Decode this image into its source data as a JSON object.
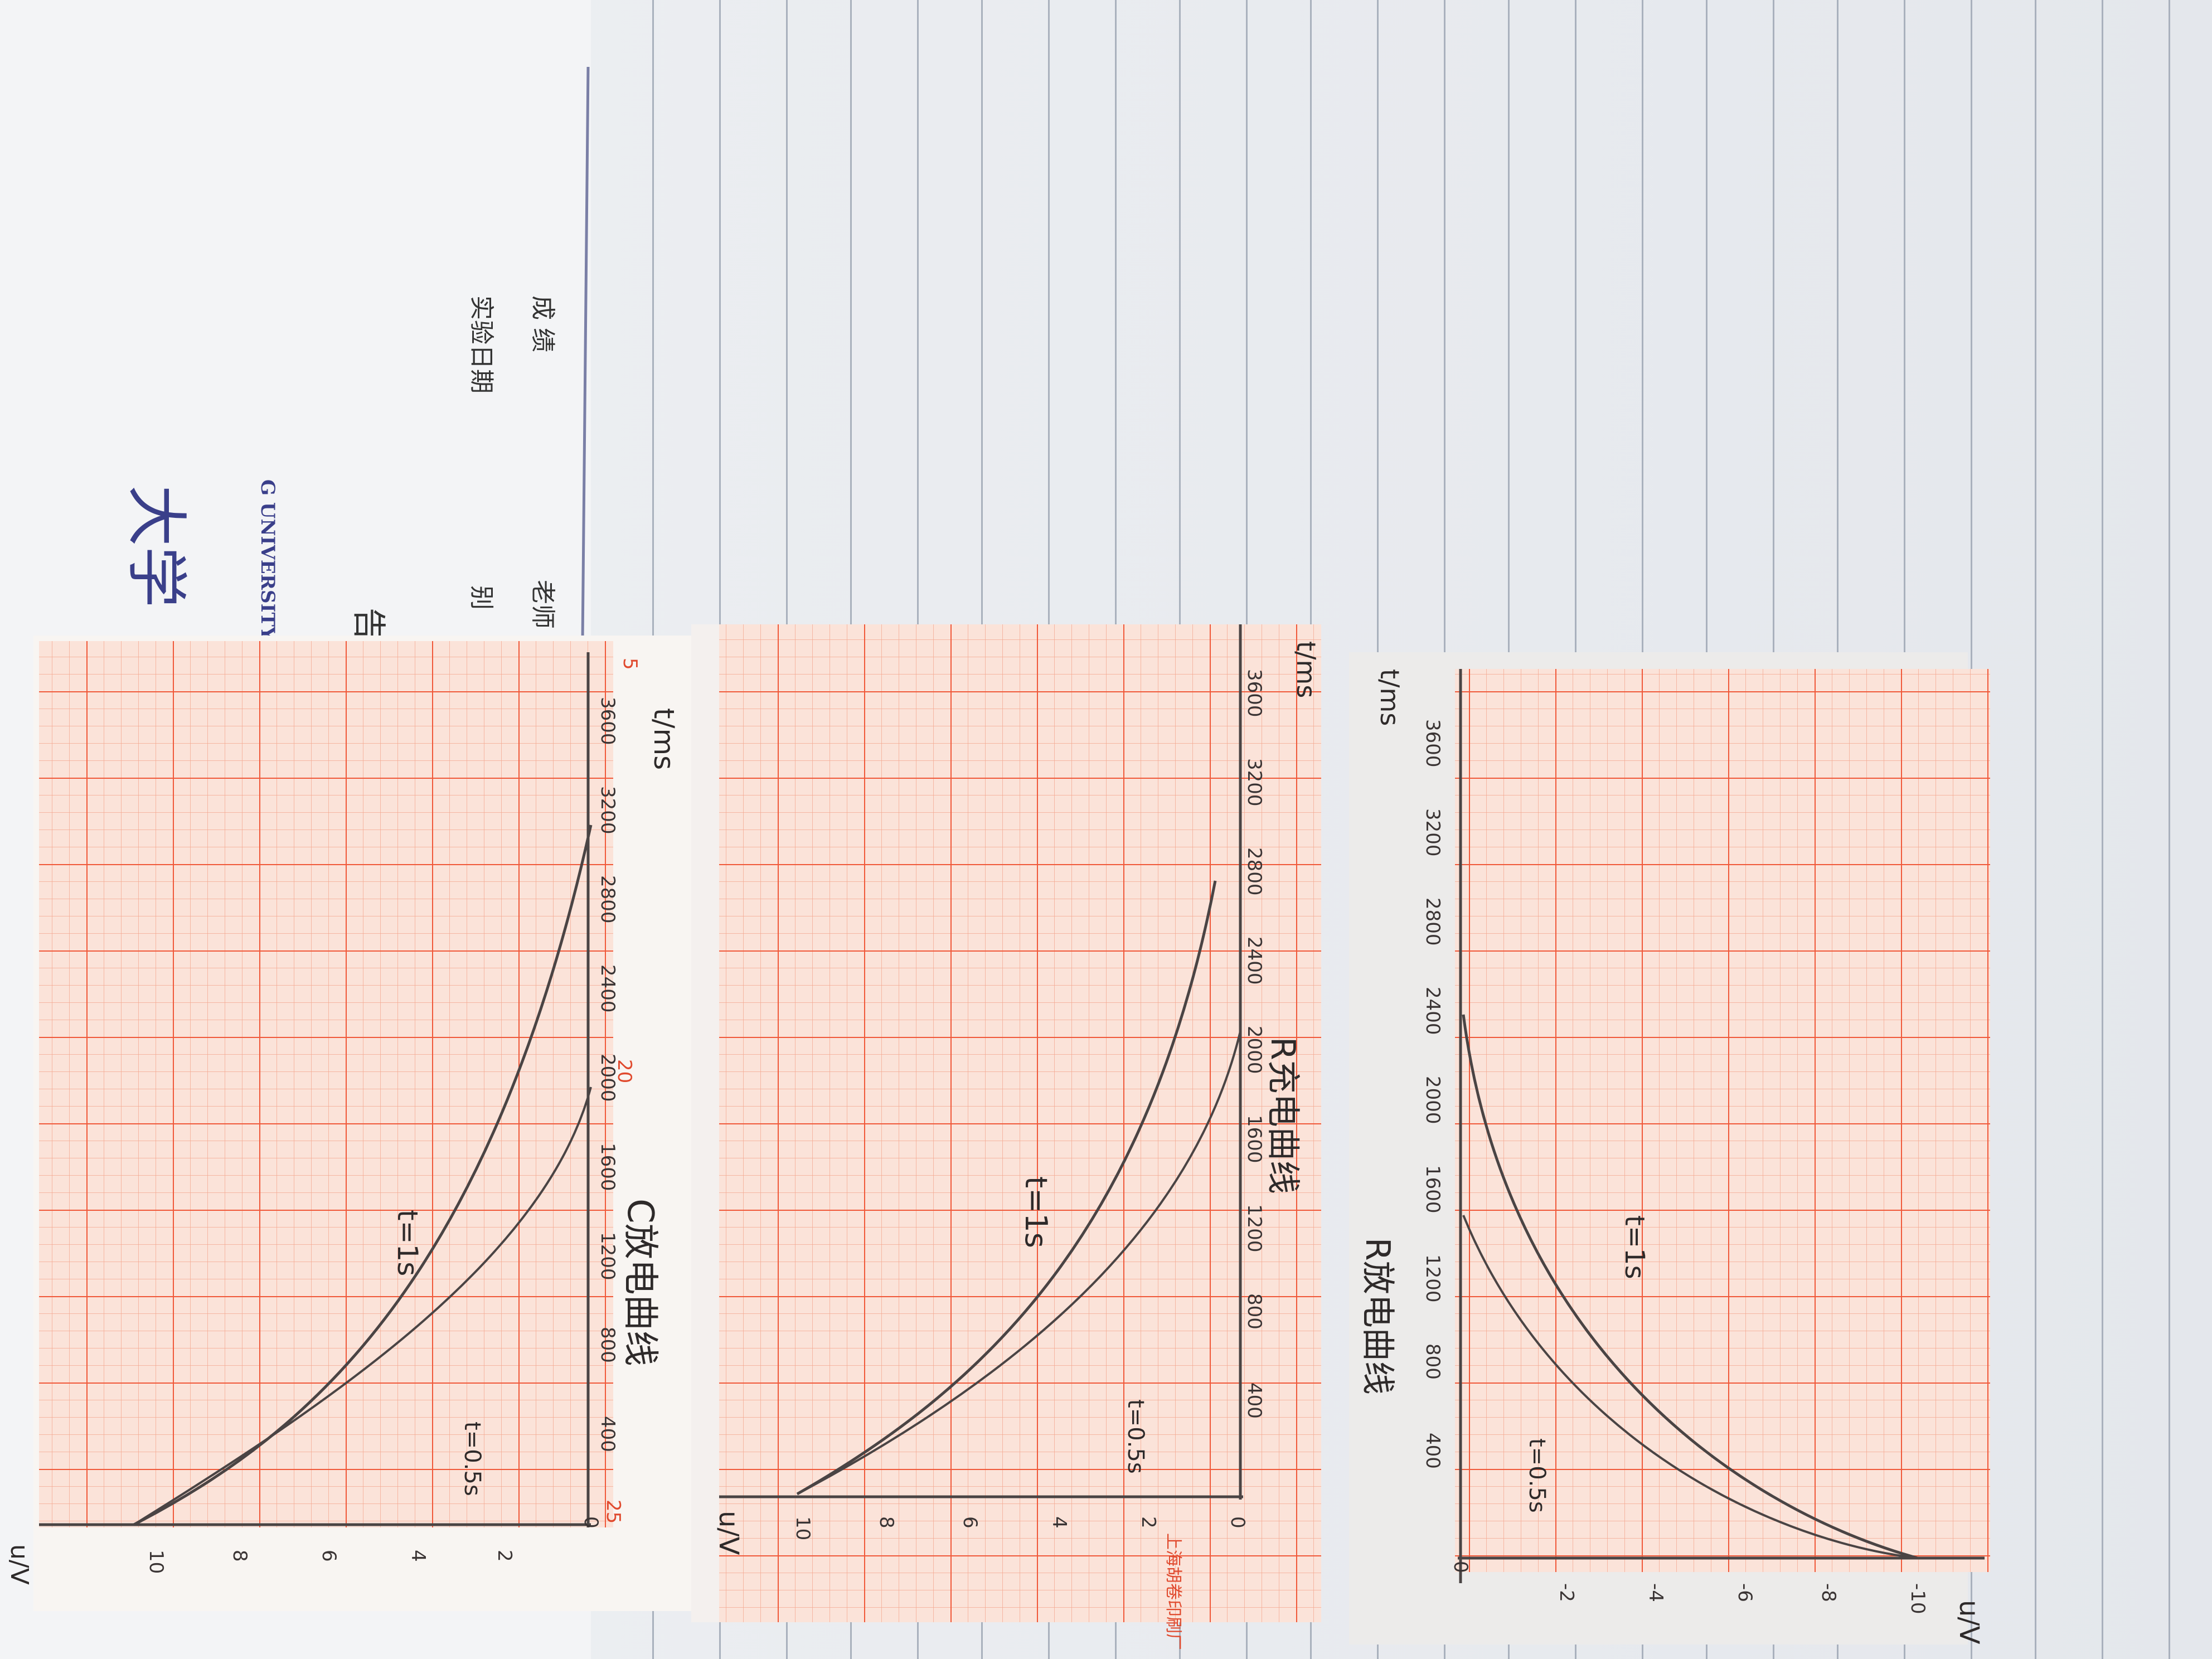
{
  "background_page": {
    "university_cn": "大学",
    "university_en": "G UNIVERSITY",
    "report_char": "告",
    "field_date": "实验日期",
    "field_grade": "成  绩",
    "field_type": "别",
    "field_teacher": "老师"
  },
  "graph_papers": [
    {
      "caption": "C放电曲线",
      "y_axis_label": "u/V",
      "x_axis_label": "t/ms",
      "y_ticks": [
        "10",
        "8",
        "6",
        "4",
        "2",
        "0"
      ],
      "x_ticks": [
        "400",
        "800",
        "1200",
        "1600",
        "2000",
        "2400",
        "2800",
        "3200",
        "3600"
      ],
      "curve_labels": [
        "t=1s",
        "t=0.5s"
      ],
      "orange_marks": [
        "25",
        "20",
        "5"
      ]
    },
    {
      "caption": "R充电曲线",
      "y_axis_label": "u/V",
      "x_axis_label": "t/ms",
      "y_ticks": [
        "10",
        "8",
        "6",
        "4",
        "2",
        "0"
      ],
      "x_ticks": [
        "400",
        "800",
        "1200",
        "1600",
        "2000",
        "2400",
        "2800",
        "3200",
        "3600"
      ],
      "curve_labels": [
        "t=1s",
        "t=0.5s"
      ],
      "brand": "上海胡卷印刷厂"
    },
    {
      "caption": "R放电曲线",
      "y_axis_label": "u/V",
      "x_axis_label": "t/ms",
      "y_ticks": [
        "0",
        "-2",
        "-4",
        "-6",
        "-8",
        "-10"
      ],
      "x_ticks": [
        "400",
        "800",
        "1200",
        "1600",
        "2000",
        "2400",
        "2800",
        "3200",
        "3600"
      ],
      "curve_labels": [
        "t=1s",
        "t=0.5s"
      ]
    }
  ],
  "colors": {
    "grid_paper": "#fbe6dc",
    "grid_line": "#f0593a",
    "pencil": "#4a4444",
    "notebook_rule": "#a9b1bd"
  }
}
